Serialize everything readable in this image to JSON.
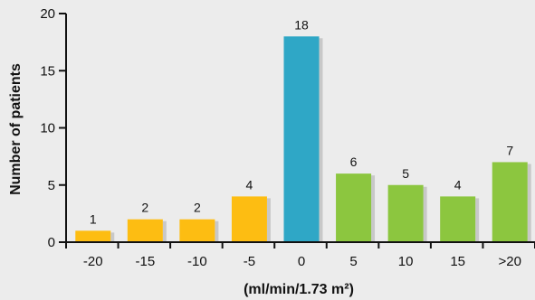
{
  "chart_data": {
    "type": "bar",
    "categories": [
      "-20",
      "-15",
      "-10",
      "-5",
      "0",
      "5",
      "10",
      "15",
      ">20"
    ],
    "values": [
      1,
      2,
      2,
      4,
      18,
      6,
      5,
      4,
      7
    ],
    "data_labels": [
      "1",
      "2",
      "2",
      "4",
      "18",
      "6",
      "5",
      "4",
      "7"
    ],
    "xlabel": "(ml/min/1.73 m²)",
    "ylabel": "Number of patients",
    "ylim": [
      0,
      20
    ],
    "yticks": [
      0,
      5,
      10,
      15,
      20
    ],
    "ytick_labels": [
      "0",
      "5",
      "10",
      "15",
      "20"
    ],
    "grid": false,
    "colors": {
      "negative": "#fdbd12",
      "zero": "#2fa7c6",
      "positive": "#8cc63f",
      "shadow": "#c8c8c8",
      "axis": "#111111",
      "background": "#ececec"
    },
    "bar_colors": [
      "negative",
      "negative",
      "negative",
      "negative",
      "zero",
      "positive",
      "positive",
      "positive",
      "positive"
    ]
  }
}
